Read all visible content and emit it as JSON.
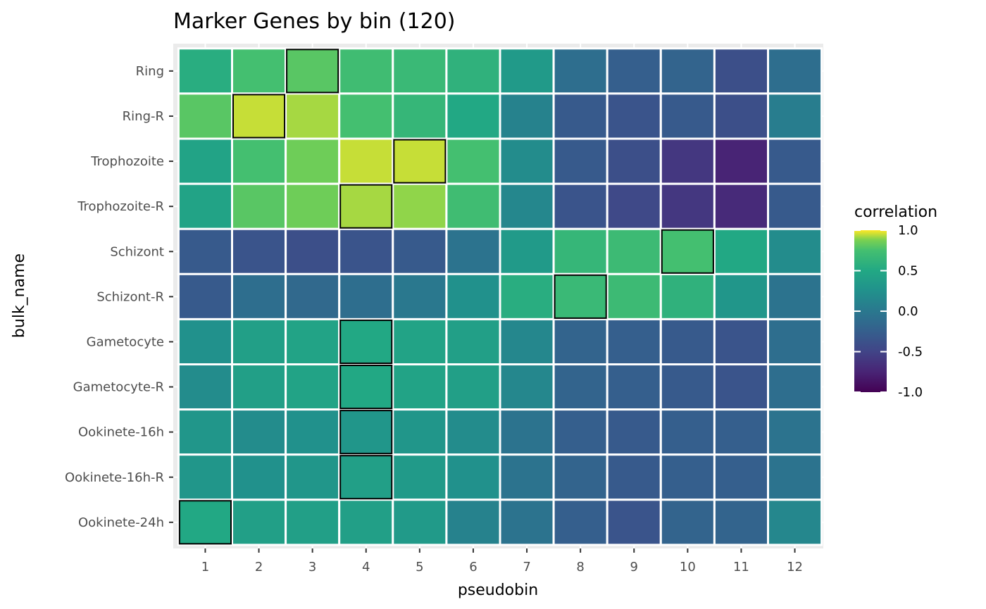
{
  "chart_data": {
    "type": "heatmap",
    "title": "Marker Genes by bin (120)",
    "xlabel": "pseudobin",
    "ylabel": "bulk_name",
    "x": [
      "1",
      "2",
      "3",
      "4",
      "5",
      "6",
      "7",
      "8",
      "9",
      "10",
      "11",
      "12"
    ],
    "y": [
      "Ring",
      "Ring-R",
      "Trophozoite",
      "Trophozoite-R",
      "Schizont",
      "Schizont-R",
      "Gametocyte",
      "Gametocyte-R",
      "Ookinete-16h",
      "Ookinete-16h-R",
      "Ookinete-24h"
    ],
    "values": [
      [
        0.55,
        0.75,
        0.8,
        0.72,
        0.68,
        0.6,
        0.35,
        -0.1,
        -0.25,
        -0.2,
        -0.4,
        -0.1
      ],
      [
        0.8,
        0.95,
        0.92,
        0.75,
        0.65,
        0.5,
        0.1,
        -0.3,
        -0.35,
        -0.3,
        -0.4,
        0.05
      ],
      [
        0.45,
        0.75,
        0.85,
        0.95,
        0.95,
        0.75,
        0.2,
        -0.3,
        -0.4,
        -0.6,
        -0.75,
        -0.3
      ],
      [
        0.45,
        0.8,
        0.85,
        0.92,
        0.9,
        0.72,
        0.15,
        -0.35,
        -0.45,
        -0.6,
        -0.7,
        -0.3
      ],
      [
        -0.3,
        -0.35,
        -0.4,
        -0.35,
        -0.3,
        -0.05,
        0.35,
        0.65,
        0.7,
        0.75,
        0.5,
        0.2
      ],
      [
        -0.3,
        -0.1,
        -0.15,
        -0.1,
        0.0,
        0.25,
        0.55,
        0.68,
        0.7,
        0.6,
        0.3,
        -0.05
      ],
      [
        0.25,
        0.4,
        0.45,
        0.5,
        0.45,
        0.4,
        0.15,
        -0.2,
        -0.25,
        -0.3,
        -0.35,
        -0.1
      ],
      [
        0.2,
        0.4,
        0.45,
        0.5,
        0.45,
        0.4,
        0.15,
        -0.2,
        -0.25,
        -0.3,
        -0.35,
        -0.1
      ],
      [
        0.3,
        0.2,
        0.25,
        0.3,
        0.3,
        0.2,
        -0.05,
        -0.25,
        -0.3,
        -0.25,
        -0.25,
        -0.05
      ],
      [
        0.3,
        0.25,
        0.3,
        0.4,
        0.35,
        0.25,
        -0.05,
        -0.2,
        -0.3,
        -0.25,
        -0.25,
        -0.05
      ],
      [
        0.5,
        0.4,
        0.4,
        0.4,
        0.35,
        0.1,
        -0.05,
        -0.25,
        -0.35,
        -0.2,
        -0.2,
        0.15
      ]
    ],
    "highlighted": [
      [
        0,
        2
      ],
      [
        1,
        1
      ],
      [
        2,
        4
      ],
      [
        3,
        3
      ],
      [
        4,
        9
      ],
      [
        5,
        7
      ],
      [
        6,
        3
      ],
      [
        7,
        3
      ],
      [
        8,
        3
      ],
      [
        9,
        3
      ],
      [
        10,
        0
      ]
    ],
    "colorbar": {
      "title": "correlation",
      "range": [
        -1.0,
        1.0
      ],
      "ticks": [
        "1.0",
        "0.5",
        "0.0",
        "-0.5",
        "-1.0"
      ],
      "tick_values": [
        1.0,
        0.5,
        0.0,
        -0.5,
        -1.0
      ],
      "colormap": "viridis",
      "placement": "right"
    },
    "colors": {
      "panel_background": "#ebebeb",
      "gridline": "#ffffff",
      "tile_border": "#ffffff",
      "highlight_border": "#000000",
      "tick_text": "#4d4d4d"
    },
    "grid": true
  }
}
